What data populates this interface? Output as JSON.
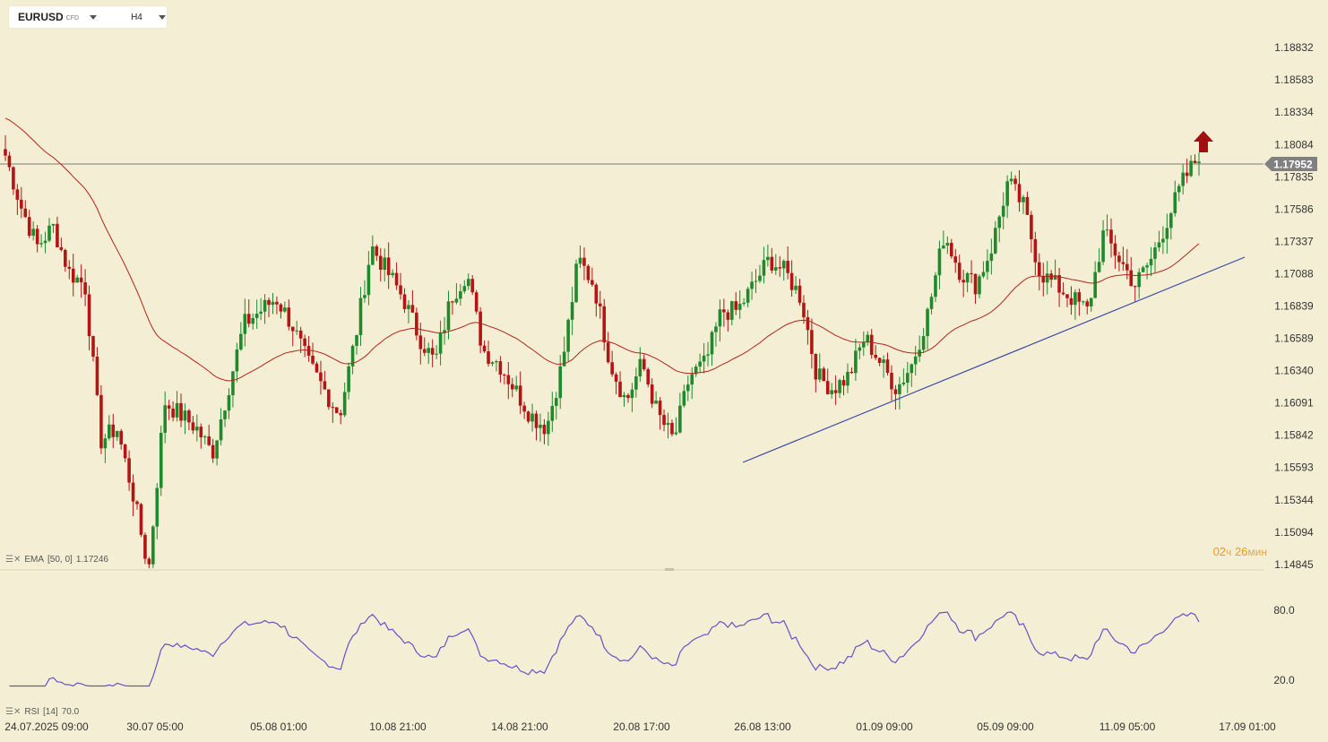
{
  "toolbar": {
    "symbol": "EURUSD",
    "symbol_type": "CFD",
    "timeframe": "H4"
  },
  "indicators": {
    "ema_label": "EMA",
    "ema_params": "[50, 0]",
    "ema_value": "1.17246",
    "rsi_label": "RSI",
    "rsi_params": "[14]",
    "rsi_value": "70.0"
  },
  "timer": {
    "hours": "02",
    "hours_unit": "ч",
    "minutes": "26",
    "minutes_unit": "мин"
  },
  "colors": {
    "background": "#f4efd4",
    "bull": "#1f8a2c",
    "bear": "#b51414",
    "ema": "#b3241b",
    "rsi": "#6a4fc8",
    "trendline": "#3b4aa8",
    "price_tag": "#808080",
    "arrow": "#a01010"
  },
  "chart_data": {
    "type": "candlestick",
    "symbol": "EURUSD",
    "timeframe": "H4",
    "y_ticks": [
      "1.18832",
      "1.18583",
      "1.18334",
      "1.18084",
      "1.17835",
      "1.17586",
      "1.17337",
      "1.17088",
      "1.16839",
      "1.16589",
      "1.16340",
      "1.16091",
      "1.15842",
      "1.15593",
      "1.15344",
      "1.15094",
      "1.14845"
    ],
    "ylim": [
      1.14845,
      1.18832
    ],
    "x_tick_labels": [
      "24.07.2025  09:00",
      "30.07  05:00",
      "05.08  01:00",
      "10.08  21:00",
      "14.08  21:00",
      "20.08  17:00",
      "26.08  13:00",
      "01.09  09:00",
      "05.09  09:00",
      "11.09  05:00",
      "17.09  01:00"
    ],
    "current_price": "1.17952",
    "price_waypoints": [
      [
        1.18,
        1.176
      ],
      [
        1.173,
        1.1745
      ],
      [
        1.171,
        1.17
      ],
      [
        1.158,
        1.159
      ],
      [
        1.154,
        1.148
      ],
      [
        1.161,
        1.16
      ],
      [
        1.159,
        1.157
      ],
      [
        1.162,
        1.167
      ],
      [
        1.168,
        1.169
      ],
      [
        1.167,
        1.164
      ],
      [
        1.162,
        1.16
      ],
      [
        1.166,
        1.173
      ],
      [
        1.171,
        1.169
      ],
      [
        1.166,
        1.164
      ],
      [
        1.169,
        1.171
      ],
      [
        1.165,
        1.164
      ],
      [
        1.162,
        1.16
      ],
      [
        1.159,
        1.164
      ],
      [
        1.172,
        1.17
      ],
      [
        1.164,
        1.161
      ],
      [
        1.164,
        1.16
      ],
      [
        1.158,
        1.163
      ],
      [
        1.164,
        1.168
      ],
      [
        1.168,
        1.17
      ],
      [
        1.172,
        1.171
      ],
      [
        1.169,
        1.163
      ],
      [
        1.162,
        1.163
      ],
      [
        1.166,
        1.164
      ],
      [
        1.162,
        1.164
      ],
      [
        1.168,
        1.174
      ],
      [
        1.171,
        1.17
      ],
      [
        1.173,
        1.178
      ],
      [
        1.176,
        1.171
      ],
      [
        1.17,
        1.169
      ],
      [
        1.168,
        1.174
      ],
      [
        1.172,
        1.17
      ],
      [
        1.172,
        1.175
      ],
      [
        1.178,
        1.18
      ]
    ],
    "ema_series": {
      "name": "EMA [50, 0]",
      "last_value": 1.17246
    },
    "rsi_series": {
      "name": "RSI [14]",
      "last_value": 70.0,
      "levels": [
        80.0,
        20.0
      ]
    },
    "trendline": {
      "from": [
        "26.08",
        1.157
      ],
      "to": [
        "11.09",
        1.1725
      ]
    }
  }
}
